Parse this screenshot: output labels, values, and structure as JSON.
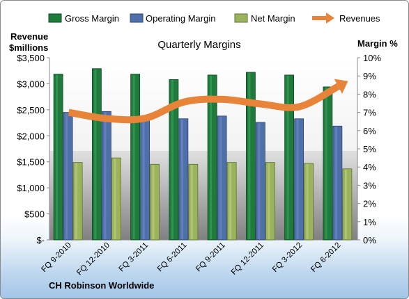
{
  "chart_data": {
    "type": "bar",
    "title": "Quarterly Margins",
    "company": "CH Robinson Worldwide",
    "left_axis_label": [
      "Revenue",
      "$millions"
    ],
    "right_axis_label": "Margin %",
    "categories": [
      "FQ 9-2010",
      "FQ 12-2010",
      "FQ 3-2011",
      "FQ 6-2011",
      "FQ 9-2011",
      "FQ 12-2011",
      "FQ 3-2012",
      "FQ 6-2012"
    ],
    "left_ticks": [
      "$-",
      "$500",
      "$1,000",
      "$1,500",
      "$2,000",
      "$2,500",
      "$3,000",
      "$3,500"
    ],
    "right_ticks": [
      "0%",
      "1%",
      "2%",
      "3%",
      "4%",
      "5%",
      "6%",
      "7%",
      "8%",
      "9%",
      "10%"
    ],
    "ylim_left": [
      0,
      3500
    ],
    "ylim_right": [
      0,
      10
    ],
    "grid": false,
    "legend_placement": "top",
    "series": [
      {
        "name": "Gross Margin",
        "axis": "right",
        "color": "#1f7a3c",
        "values": [
          9.1,
          9.4,
          9.1,
          8.8,
          9.05,
          9.2,
          9.05,
          8.4
        ]
      },
      {
        "name": "Operating Margin",
        "axis": "right",
        "color": "#4f6fa8",
        "values": [
          7.0,
          7.05,
          6.55,
          6.65,
          6.8,
          6.45,
          6.65,
          6.25
        ]
      },
      {
        "name": "Net Margin",
        "axis": "right",
        "color": "#9bb35c",
        "values": [
          4.25,
          4.5,
          4.15,
          4.15,
          4.25,
          4.25,
          4.2,
          3.9
        ]
      },
      {
        "name": "Revenues",
        "axis": "left",
        "type": "line",
        "color": "#e8843a",
        "values": [
          2450,
          2330,
          2340,
          2650,
          2700,
          2610,
          2560,
          2950
        ]
      }
    ]
  }
}
